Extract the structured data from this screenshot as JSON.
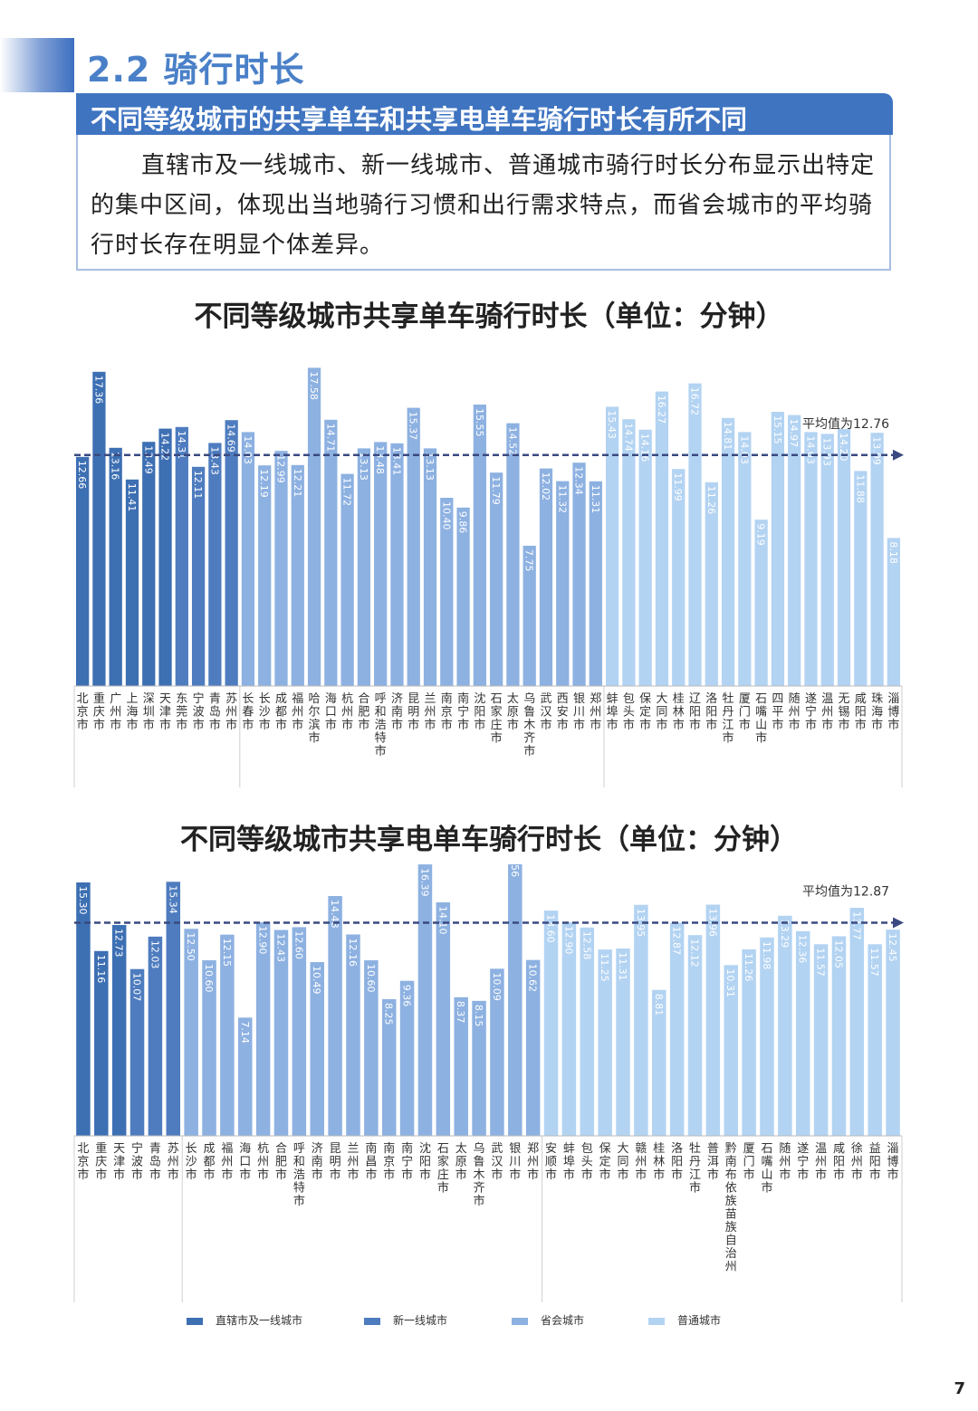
{
  "section": {
    "title": "2.2 骑行时长"
  },
  "banner": {
    "text": "不同等级城市的共享单车和共享电单车骑行时长有所不同"
  },
  "intro": {
    "text": "直辖市及一线城市、新一线城市、普通城市骑行时长分布显示出特定的集中区间，体现出当地骑行习惯和出行需求特点，而省会城市的平均骑行时长存在明显个体差异。"
  },
  "colors": {
    "tier1": "#3d6fb3",
    "newtier1": "#4e7cbf",
    "provincial": "#8db1e1",
    "ordinary": "#b3d3f2",
    "avg_line": "#3a4a80"
  },
  "legend": [
    {
      "label": "直辖市及一线城市",
      "color": "#3d6fb3"
    },
    {
      "label": "新一线城市",
      "color": "#4e7cbf"
    },
    {
      "label": "省会城市",
      "color": "#8db1e1"
    },
    {
      "label": "普通城市",
      "color": "#b3d3f2"
    }
  ],
  "chart_data": [
    {
      "type": "bar",
      "title": "不同等级城市共享单车骑行时长（单位：分钟）",
      "average": 12.76,
      "average_label": "平均值为12.76",
      "ylim": [
        0,
        18
      ],
      "categories": [
        "北京市",
        "重庆市",
        "广州市",
        "上海市",
        "深圳市",
        "天津市",
        "东莞市",
        "宁波市",
        "青岛市",
        "苏州市",
        "长春市",
        "长沙市",
        "成都市",
        "福州市",
        "哈尔滨市",
        "海口市",
        "杭州市",
        "合肥市",
        "呼和浩特市",
        "济南市",
        "昆明市",
        "兰州市",
        "南京市",
        "南宁市",
        "沈阳市",
        "石家庄市",
        "太原市",
        "乌鲁木齐市",
        "武汉市",
        "西安市",
        "银川市",
        "郑州市",
        "蚌埠市",
        "包头市",
        "保定市",
        "大同市",
        "桂林市",
        "辽阳市",
        "洛阳市",
        "牡丹江市",
        "厦门市",
        "石嘴山市",
        "四平市",
        "随州市",
        "遂宁市",
        "温州市",
        "无锡市",
        "咸阳市",
        "珠海市",
        "淄博市"
      ],
      "values": [
        12.66,
        17.36,
        13.16,
        11.41,
        13.49,
        14.22,
        14.31,
        12.11,
        13.43,
        14.69,
        14.03,
        12.19,
        12.99,
        12.21,
        17.58,
        14.71,
        11.72,
        13.13,
        13.48,
        13.41,
        15.37,
        13.13,
        10.4,
        9.86,
        15.55,
        11.79,
        14.52,
        7.75,
        12.02,
        11.32,
        12.34,
        11.31,
        15.43,
        14.74,
        14.16,
        16.27,
        11.99,
        16.72,
        11.26,
        14.81,
        14.03,
        9.19,
        15.15,
        14.97,
        14.03,
        13.93,
        14.2,
        11.88,
        13.99,
        8.18
      ],
      "tiers": [
        0,
        0,
        0,
        0,
        0,
        0,
        1,
        1,
        1,
        1,
        2,
        2,
        2,
        2,
        2,
        2,
        2,
        2,
        2,
        2,
        2,
        2,
        2,
        2,
        2,
        2,
        2,
        2,
        2,
        2,
        2,
        2,
        3,
        3,
        3,
        3,
        3,
        3,
        3,
        3,
        3,
        3,
        3,
        3,
        3,
        3,
        3,
        3,
        3,
        3
      ]
    },
    {
      "type": "bar",
      "title": "不同等级城市共享电单车骑行时长（单位：分钟）",
      "average": 12.87,
      "average_label": "平均值为12.87",
      "ylim": [
        0,
        18
      ],
      "categories": [
        "北京市",
        "重庆市",
        "天津市",
        "宁波市",
        "青岛市",
        "苏州市",
        "长沙市",
        "成都市",
        "福州市",
        "海口市",
        "杭州市",
        "合肥市",
        "呼和浩特市",
        "济南市",
        "昆明市",
        "兰州市",
        "南昌市",
        "南京市",
        "南宁市",
        "沈阳市",
        "石家庄市",
        "太原市",
        "乌鲁木齐市",
        "武汉市",
        "银川市",
        "郑州市",
        "安顺市",
        "蚌埠市",
        "包头市",
        "保定市",
        "大同市",
        "赣州市",
        "桂林市",
        "洛阳市",
        "牡丹江市",
        "普洱市",
        "黔南布依族苗族自治州",
        "厦门市",
        "石嘴山市",
        "随州市",
        "遂宁市",
        "温州市",
        "咸阳市",
        "徐州市",
        "益阳市",
        "淄博市"
      ],
      "values": [
        15.3,
        11.16,
        12.73,
        10.07,
        12.03,
        15.34,
        12.5,
        10.6,
        12.15,
        7.14,
        12.9,
        12.43,
        12.6,
        10.49,
        14.48,
        12.16,
        10.6,
        8.25,
        9.36,
        16.39,
        14.1,
        8.37,
        8.15,
        10.09,
        17.56,
        10.62,
        13.6,
        12.9,
        12.58,
        11.25,
        11.31,
        13.95,
        8.81,
        12.87,
        12.12,
        13.96,
        10.31,
        11.26,
        11.98,
        13.29,
        12.36,
        11.57,
        12.05,
        13.77,
        11.57,
        12.45
      ],
      "tiers": [
        0,
        0,
        0,
        1,
        1,
        1,
        2,
        2,
        2,
        2,
        2,
        2,
        2,
        2,
        2,
        2,
        2,
        2,
        2,
        2,
        2,
        2,
        2,
        2,
        2,
        2,
        3,
        3,
        3,
        3,
        3,
        3,
        3,
        3,
        3,
        3,
        3,
        3,
        3,
        3,
        3,
        3,
        3,
        3,
        3,
        3
      ]
    }
  ],
  "page_number": "7"
}
